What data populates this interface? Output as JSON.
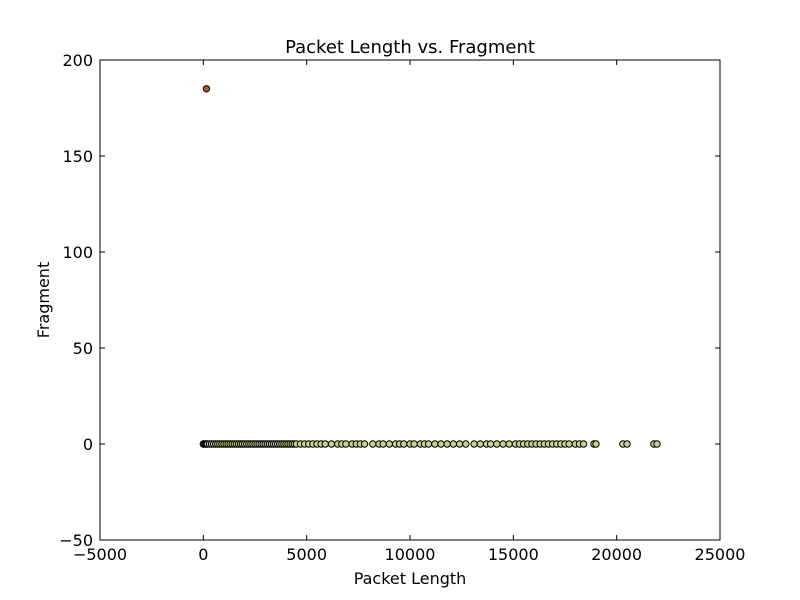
{
  "chart_data": {
    "type": "scatter",
    "title": "Packet Length vs. Fragment",
    "xlabel": "Packet Length",
    "ylabel": "Fragment",
    "xlim": [
      -5000,
      25000
    ],
    "ylim": [
      -50,
      200
    ],
    "x_ticks": [
      -5000,
      0,
      5000,
      10000,
      15000,
      20000,
      25000
    ],
    "x_tick_labels": [
      "−5000",
      "0",
      "5000",
      "10000",
      "15000",
      "20000",
      "25000"
    ],
    "y_ticks": [
      -50,
      0,
      50,
      100,
      150,
      200
    ],
    "y_tick_labels": [
      "−50",
      "0",
      "50",
      "100",
      "150",
      "200"
    ],
    "grid": false,
    "legend": "none",
    "colors": {
      "outlier": "#c0522d",
      "points": "#c8d28a",
      "edge": "#000000",
      "axes": "#000000"
    },
    "series": [
      {
        "color": "#c0522d",
        "points": [
          {
            "x": 150,
            "y": 185
          }
        ]
      },
      {
        "color": "#c8d28a",
        "points": [
          {
            "x": 0,
            "y": 0
          },
          {
            "x": 50,
            "y": 0
          },
          {
            "x": 100,
            "y": 0
          },
          {
            "x": 150,
            "y": 0
          },
          {
            "x": 200,
            "y": 0
          },
          {
            "x": 300,
            "y": 0
          },
          {
            "x": 400,
            "y": 0
          },
          {
            "x": 500,
            "y": 0
          },
          {
            "x": 600,
            "y": 0
          },
          {
            "x": 700,
            "y": 0
          },
          {
            "x": 800,
            "y": 0
          },
          {
            "x": 900,
            "y": 0
          },
          {
            "x": 1000,
            "y": 0
          },
          {
            "x": 1100,
            "y": 0
          },
          {
            "x": 1200,
            "y": 0
          },
          {
            "x": 1300,
            "y": 0
          },
          {
            "x": 1400,
            "y": 0
          },
          {
            "x": 1500,
            "y": 0
          },
          {
            "x": 1600,
            "y": 0
          },
          {
            "x": 1700,
            "y": 0
          },
          {
            "x": 1800,
            "y": 0
          },
          {
            "x": 1900,
            "y": 0
          },
          {
            "x": 2000,
            "y": 0
          },
          {
            "x": 2100,
            "y": 0
          },
          {
            "x": 2200,
            "y": 0
          },
          {
            "x": 2300,
            "y": 0
          },
          {
            "x": 2400,
            "y": 0
          },
          {
            "x": 2500,
            "y": 0
          },
          {
            "x": 2600,
            "y": 0
          },
          {
            "x": 2700,
            "y": 0
          },
          {
            "x": 2800,
            "y": 0
          },
          {
            "x": 2900,
            "y": 0
          },
          {
            "x": 3000,
            "y": 0
          },
          {
            "x": 3100,
            "y": 0
          },
          {
            "x": 3200,
            "y": 0
          },
          {
            "x": 3300,
            "y": 0
          },
          {
            "x": 3400,
            "y": 0
          },
          {
            "x": 3500,
            "y": 0
          },
          {
            "x": 3600,
            "y": 0
          },
          {
            "x": 3700,
            "y": 0
          },
          {
            "x": 3800,
            "y": 0
          },
          {
            "x": 3900,
            "y": 0
          },
          {
            "x": 4000,
            "y": 0
          },
          {
            "x": 4100,
            "y": 0
          },
          {
            "x": 4200,
            "y": 0
          },
          {
            "x": 4300,
            "y": 0
          },
          {
            "x": 4400,
            "y": 0
          },
          {
            "x": 4500,
            "y": 0
          },
          {
            "x": 4700,
            "y": 0
          },
          {
            "x": 4900,
            "y": 0
          },
          {
            "x": 5100,
            "y": 0
          },
          {
            "x": 5300,
            "y": 0
          },
          {
            "x": 5500,
            "y": 0
          },
          {
            "x": 5700,
            "y": 0
          },
          {
            "x": 5900,
            "y": 0
          },
          {
            "x": 6200,
            "y": 0
          },
          {
            "x": 6500,
            "y": 0
          },
          {
            "x": 6700,
            "y": 0
          },
          {
            "x": 6900,
            "y": 0
          },
          {
            "x": 7200,
            "y": 0
          },
          {
            "x": 7400,
            "y": 0
          },
          {
            "x": 7600,
            "y": 0
          },
          {
            "x": 7800,
            "y": 0
          },
          {
            "x": 8200,
            "y": 0
          },
          {
            "x": 8500,
            "y": 0
          },
          {
            "x": 8700,
            "y": 0
          },
          {
            "x": 9000,
            "y": 0
          },
          {
            "x": 9300,
            "y": 0
          },
          {
            "x": 9500,
            "y": 0
          },
          {
            "x": 9700,
            "y": 0
          },
          {
            "x": 10000,
            "y": 0
          },
          {
            "x": 10200,
            "y": 0
          },
          {
            "x": 10500,
            "y": 0
          },
          {
            "x": 10700,
            "y": 0
          },
          {
            "x": 10900,
            "y": 0
          },
          {
            "x": 11200,
            "y": 0
          },
          {
            "x": 11500,
            "y": 0
          },
          {
            "x": 11800,
            "y": 0
          },
          {
            "x": 12100,
            "y": 0
          },
          {
            "x": 12400,
            "y": 0
          },
          {
            "x": 12700,
            "y": 0
          },
          {
            "x": 13100,
            "y": 0
          },
          {
            "x": 13400,
            "y": 0
          },
          {
            "x": 13700,
            "y": 0
          },
          {
            "x": 13900,
            "y": 0
          },
          {
            "x": 14200,
            "y": 0
          },
          {
            "x": 14500,
            "y": 0
          },
          {
            "x": 14800,
            "y": 0
          },
          {
            "x": 15100,
            "y": 0
          },
          {
            "x": 15300,
            "y": 0
          },
          {
            "x": 15500,
            "y": 0
          },
          {
            "x": 15700,
            "y": 0
          },
          {
            "x": 15900,
            "y": 0
          },
          {
            "x": 16100,
            "y": 0
          },
          {
            "x": 16300,
            "y": 0
          },
          {
            "x": 16500,
            "y": 0
          },
          {
            "x": 16700,
            "y": 0
          },
          {
            "x": 16900,
            "y": 0
          },
          {
            "x": 17100,
            "y": 0
          },
          {
            "x": 17300,
            "y": 0
          },
          {
            "x": 17500,
            "y": 0
          },
          {
            "x": 17700,
            "y": 0
          },
          {
            "x": 18000,
            "y": 0
          },
          {
            "x": 18200,
            "y": 0
          },
          {
            "x": 18400,
            "y": 0
          },
          {
            "x": 18900,
            "y": 0
          },
          {
            "x": 19000,
            "y": 0
          },
          {
            "x": 20300,
            "y": 0
          },
          {
            "x": 20500,
            "y": 0
          },
          {
            "x": 21800,
            "y": 0
          },
          {
            "x": 21950,
            "y": 0
          }
        ]
      }
    ]
  }
}
